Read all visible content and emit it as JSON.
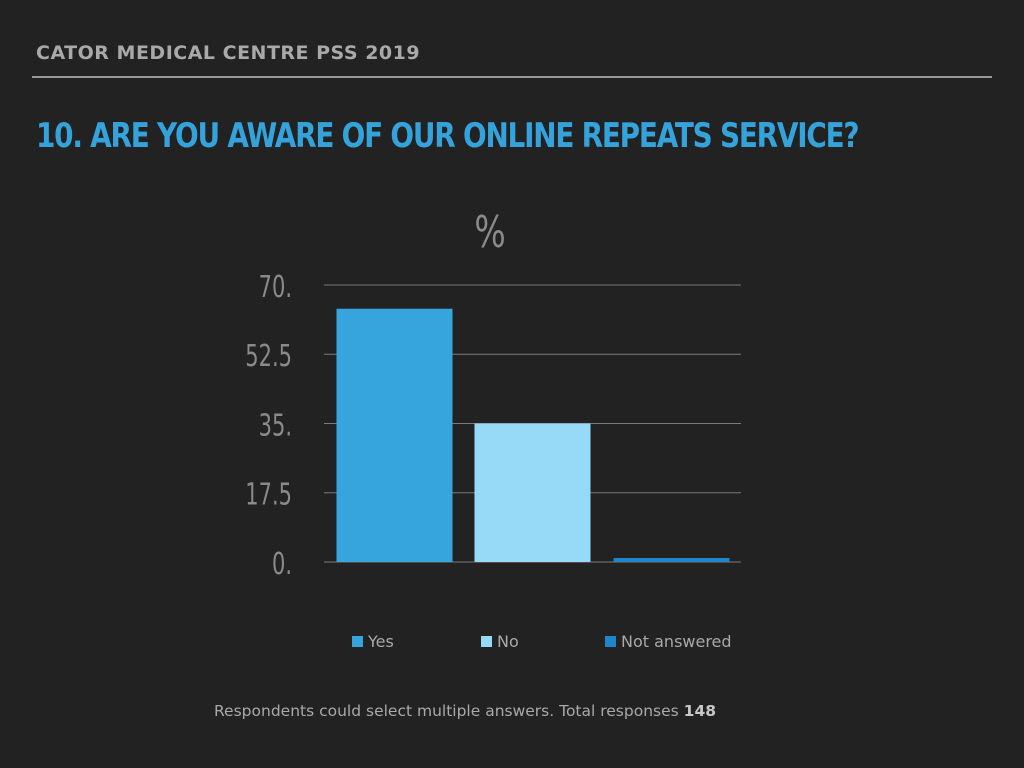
{
  "header": {
    "text": "CATOR MEDICAL CENTRE PSS 2019"
  },
  "title": "10. ARE YOU AWARE OF OUR ONLINE REPEATS SERVICE?",
  "footnote": {
    "text": "Respondents could select multiple answers. Total responses",
    "total": "148"
  },
  "chart_data": {
    "type": "bar",
    "title": "%",
    "categories": [
      "Yes",
      "No",
      "Not answered"
    ],
    "values": [
      64,
      35,
      1
    ],
    "colors": [
      "#36a5dd",
      "#96daf8",
      "#1f86cc"
    ],
    "y_ticks": [
      "0.",
      "17.5",
      "35.",
      "52.5",
      "70."
    ],
    "y_tick_values": [
      0,
      17.5,
      35,
      52.5,
      70
    ],
    "ylim": [
      0,
      70
    ],
    "grid": true,
    "legend": [
      "Yes",
      "No",
      "Not answered"
    ],
    "legend_position": "bottom"
  }
}
